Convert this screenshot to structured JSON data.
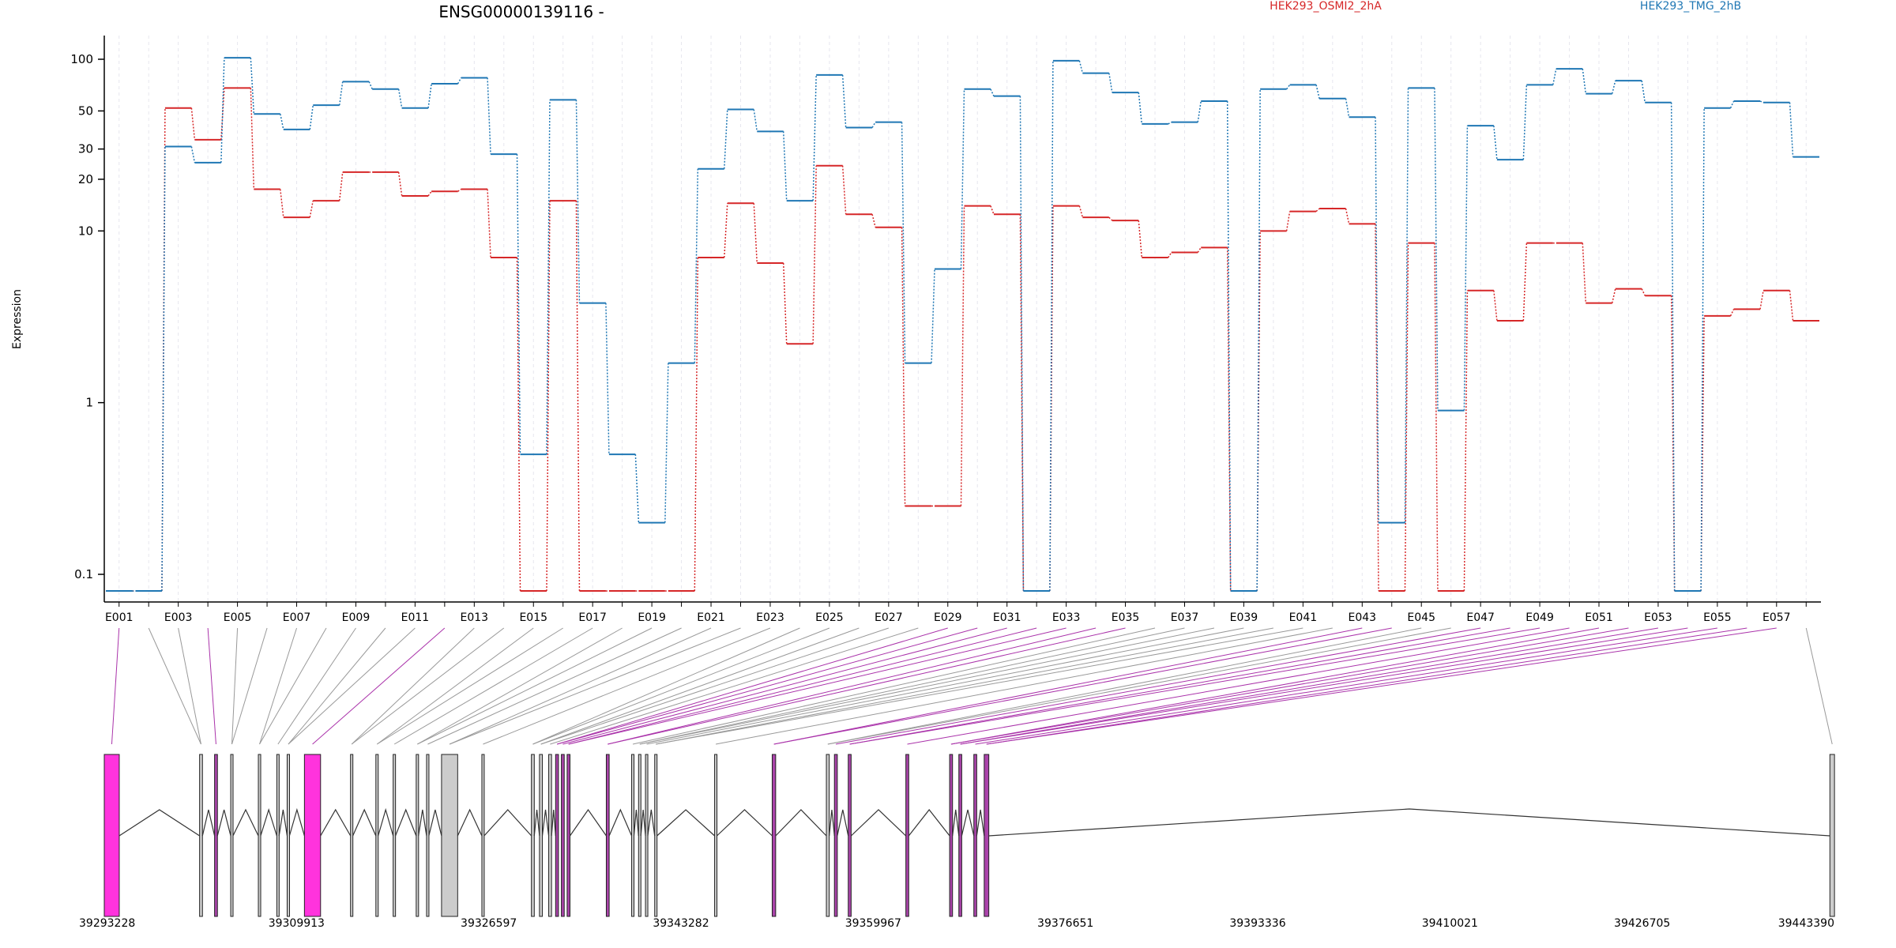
{
  "chart_data": {
    "type": "line",
    "title": "ENSG00000139116 -",
    "ylabel": "Expression",
    "xlabel": "",
    "y_scale": "log",
    "ylim": [
      0.08,
      130
    ],
    "y_ticks": [
      "0.1",
      "1",
      "10",
      "20",
      "30",
      "50",
      "100"
    ],
    "y_tick_values": [
      0.1,
      1,
      10,
      20,
      30,
      50,
      100
    ],
    "legend_position": "top",
    "exon_labels_shown": [
      "E001",
      "E003",
      "E005",
      "E007",
      "E009",
      "E011",
      "E013",
      "E015",
      "E017",
      "E019",
      "E021",
      "E023",
      "E025",
      "E027",
      "E029",
      "E031",
      "E033",
      "E035",
      "E037",
      "E039",
      "E041",
      "E043",
      "E045",
      "E047",
      "E049",
      "E051",
      "E053",
      "E055",
      "E057"
    ],
    "exon_ids": [
      "E001",
      "E002",
      "E003",
      "E004",
      "E005",
      "E006",
      "E007",
      "E008",
      "E009",
      "E010",
      "E011",
      "E012",
      "E013",
      "E014",
      "E015",
      "E016",
      "E017",
      "E018",
      "E019",
      "E020",
      "E021",
      "E022",
      "E023",
      "E024",
      "E025",
      "E026",
      "E027",
      "E028",
      "E029",
      "E030",
      "E031",
      "E032",
      "E033",
      "E034",
      "E035",
      "E036",
      "E037",
      "E038",
      "E039",
      "E040",
      "E041",
      "E042",
      "E043",
      "E044",
      "E045",
      "E046",
      "E047",
      "E048",
      "E049",
      "E050",
      "E051",
      "E052",
      "E053",
      "E054",
      "E055",
      "E056",
      "E057",
      "E058"
    ],
    "series": [
      {
        "name": "HEK293_OSMI2_2hA",
        "color": "#d62728",
        "values": [
          0.08,
          0.08,
          52,
          34,
          68,
          17.5,
          12,
          15,
          22,
          22,
          16,
          17,
          17.5,
          7,
          0.08,
          15,
          0.08,
          0.08,
          0.08,
          0.08,
          7,
          14.5,
          6.5,
          2.2,
          24,
          12.5,
          10.5,
          0.25,
          0.25,
          14,
          12.5,
          0.08,
          14,
          12,
          11.5,
          7,
          7.5,
          8,
          0.08,
          10,
          13,
          13.5,
          11,
          0.08,
          8.5,
          0.08,
          4.5,
          3,
          8.5,
          8.5,
          3.8,
          4.6,
          4.2,
          0.08,
          3.2,
          3.5,
          4.5,
          3
        ]
      },
      {
        "name": "HEK293_TMG_2hB",
        "color": "#1f77b4",
        "values": [
          0.08,
          0.08,
          31,
          25,
          102,
          48,
          39,
          54,
          74,
          67,
          52,
          72,
          78,
          28,
          0.5,
          58,
          3.8,
          0.5,
          0.2,
          1.7,
          23,
          51,
          38,
          15,
          81,
          40,
          43,
          1.7,
          6,
          67,
          61,
          0.08,
          98,
          83,
          64,
          42,
          43,
          57,
          0.08,
          67,
          71,
          59,
          46,
          0.2,
          68,
          0.9,
          41,
          26,
          71,
          88,
          63,
          75,
          56,
          0.08,
          52,
          57,
          56,
          27
        ]
      }
    ],
    "genomic_axis_ticks": [
      "39293228",
      "39309913",
      "39326597",
      "39343282",
      "39359967",
      "39376651",
      "39393336",
      "39410021",
      "39426705",
      "39443390"
    ]
  },
  "annotations": {
    "legend_a": "HEK293_OSMI2_2hA",
    "legend_b": "HEK293_TMG_2hB"
  }
}
